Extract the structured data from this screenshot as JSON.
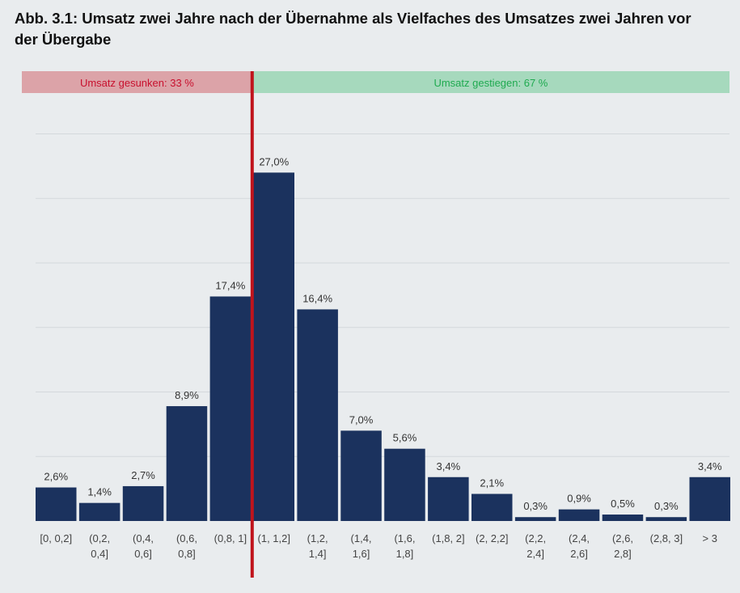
{
  "chart_data": {
    "type": "bar",
    "title": "Abb. 3.1: Umsatz zwei Jahre nach der Übernahme als Vielfaches des Umsatzes zwei Jahren vor der Übergabe",
    "categories": [
      [
        "[0, 0,2]"
      ],
      [
        "(0,2,",
        "0,4]"
      ],
      [
        "(0,4,",
        "0,6]"
      ],
      [
        "(0,6,",
        "0,8]"
      ],
      [
        "(0,8, 1]"
      ],
      [
        "(1, 1,2]"
      ],
      [
        "(1,2,",
        "1,4]"
      ],
      [
        "(1,4,",
        "1,6]"
      ],
      [
        "(1,6,",
        "1,8]"
      ],
      [
        "(1,8, 2]"
      ],
      [
        "(2, 2,2]"
      ],
      [
        "(2,2,",
        "2,4]"
      ],
      [
        "(2,4,",
        "2,6]"
      ],
      [
        "(2,6,",
        "2,8]"
      ],
      [
        "(2,8, 3]"
      ],
      [
        "> 3"
      ]
    ],
    "values": [
      2.6,
      1.4,
      2.7,
      8.9,
      17.4,
      27.0,
      16.4,
      7.0,
      5.6,
      3.4,
      2.1,
      0.3,
      0.9,
      0.5,
      0.3,
      3.4
    ],
    "value_labels": [
      "2,6%",
      "1,4%",
      "2,7%",
      "8,9%",
      "17,4%",
      "27,0%",
      "16,4%",
      "7,0%",
      "5,6%",
      "3,4%",
      "2,1%",
      "0,3%",
      "0,9%",
      "0,5%",
      "0,3%",
      "3,4%"
    ],
    "ylim": [
      0,
      30
    ],
    "gridlines": [
      5,
      10,
      15,
      20,
      25,
      30
    ],
    "divider_after_index": 4,
    "bands": {
      "left": {
        "label": "Umsatz gesunken: 33 %",
        "bg_color": "#dca3a8",
        "text_color": "#c8102e"
      },
      "right": {
        "label": "Umsatz gestiegen: 67 %",
        "bg_color": "#a6d9bd",
        "text_color": "#1faa50"
      }
    },
    "colors": {
      "bar": "#1b325e",
      "divider": "#c0141c",
      "grid": "#d4d8dc"
    }
  }
}
